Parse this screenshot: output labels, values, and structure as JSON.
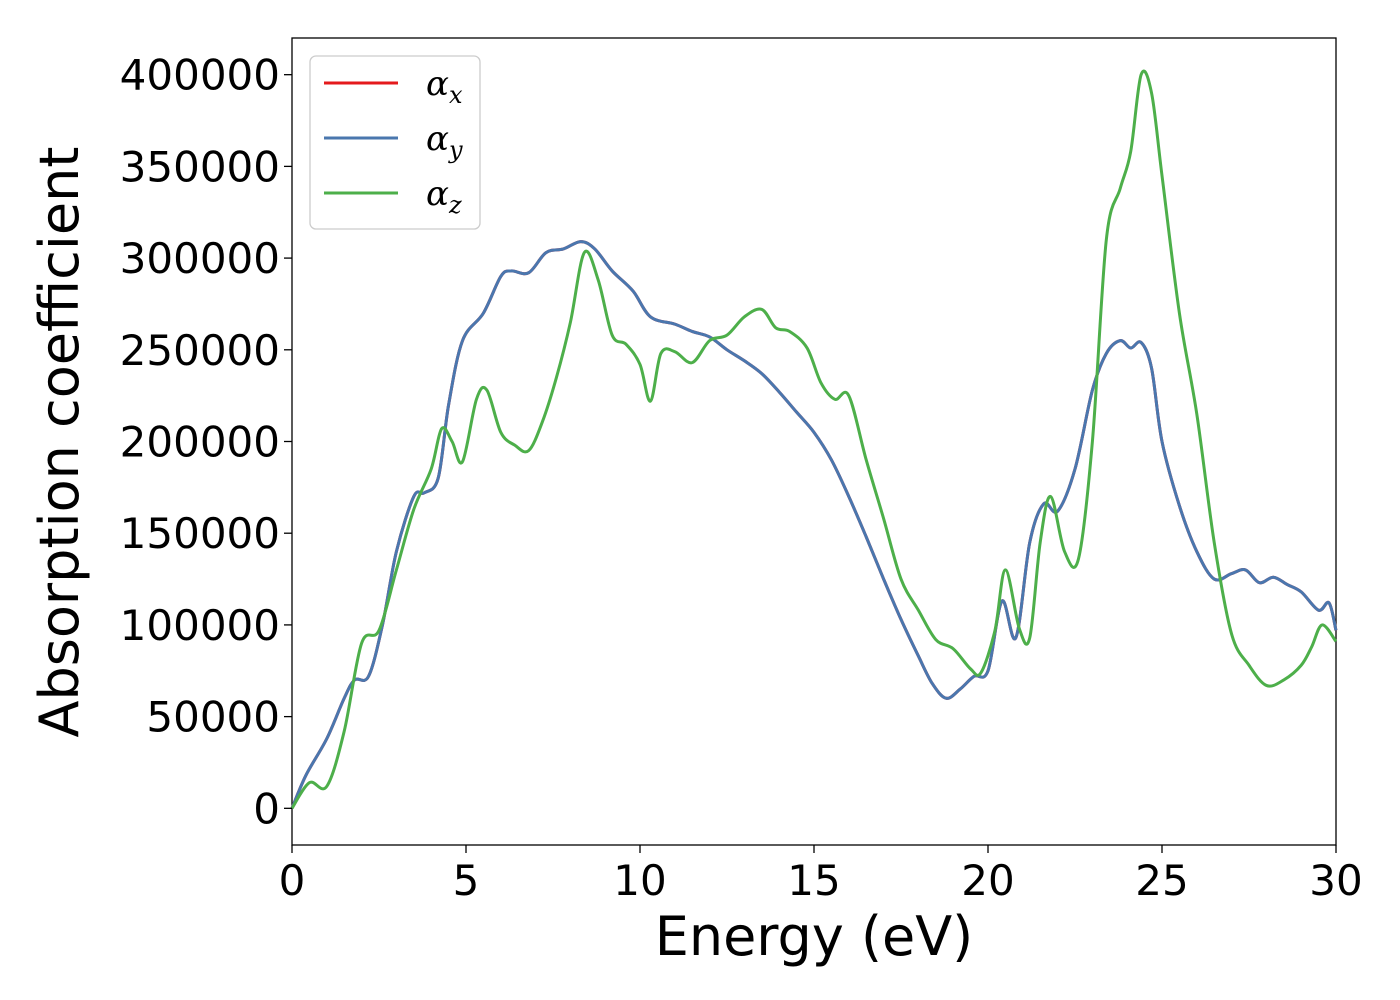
{
  "chart_data": {
    "type": "line",
    "xlabel": "Energy (eV)",
    "ylabel": "Absorption coefficient",
    "xlim": [
      0,
      30
    ],
    "ylim": [
      -20000,
      420000
    ],
    "xticks": [
      "0",
      "5",
      "10",
      "15",
      "20",
      "25",
      "30"
    ],
    "yticks": [
      "0",
      "50000",
      "100000",
      "150000",
      "200000",
      "250000",
      "300000",
      "350000",
      "400000"
    ],
    "grid": false,
    "legend_position": "top-left",
    "series": [
      {
        "name": "α",
        "subscript": "x",
        "color": "#e41a1c",
        "x": [
          0,
          0.4,
          1.0,
          1.5,
          1.8,
          2.2,
          2.6,
          3.0,
          3.5,
          3.8,
          4.2,
          4.5,
          4.9,
          5.5,
          6.0,
          6.3,
          6.8,
          7.3,
          7.8,
          8.3,
          8.7,
          9.2,
          9.8,
          10.3,
          11.0,
          11.5,
          12.0,
          12.5,
          13.0,
          13.5,
          14.0,
          14.5,
          15.0,
          15.5,
          16.0,
          16.5,
          17.0,
          17.5,
          18.0,
          18.4,
          18.8,
          19.2,
          19.6,
          20.0,
          20.4,
          20.8,
          21.2,
          21.6,
          22.0,
          22.5,
          23.0,
          23.4,
          23.8,
          24.1,
          24.4,
          24.7,
          25.0,
          25.5,
          26.0,
          26.5,
          27.0,
          27.4,
          27.8,
          28.2,
          28.6,
          29.0,
          29.5,
          29.8,
          30.0
        ],
        "values": [
          0,
          18000,
          38000,
          60000,
          70000,
          72000,
          100000,
          140000,
          170000,
          172000,
          180000,
          220000,
          255000,
          270000,
          290000,
          293000,
          292000,
          303000,
          305000,
          309000,
          305000,
          293000,
          282000,
          268000,
          264000,
          260000,
          257000,
          250000,
          244000,
          237000,
          227000,
          216000,
          205000,
          190000,
          170000,
          148000,
          125000,
          103000,
          83000,
          68000,
          60000,
          65000,
          72000,
          75000,
          113000,
          93000,
          145000,
          166000,
          162000,
          185000,
          228000,
          248000,
          255000,
          251000,
          254000,
          240000,
          200000,
          165000,
          140000,
          125000,
          128000,
          130000,
          123000,
          126000,
          122000,
          118000,
          108000,
          112000,
          97000
        ]
      },
      {
        "name": "α",
        "subscript": "y",
        "color": "#4a77ae",
        "x": [
          0,
          0.4,
          1.0,
          1.5,
          1.8,
          2.2,
          2.6,
          3.0,
          3.5,
          3.8,
          4.2,
          4.5,
          4.9,
          5.5,
          6.0,
          6.3,
          6.8,
          7.3,
          7.8,
          8.3,
          8.7,
          9.2,
          9.8,
          10.3,
          11.0,
          11.5,
          12.0,
          12.5,
          13.0,
          13.5,
          14.0,
          14.5,
          15.0,
          15.5,
          16.0,
          16.5,
          17.0,
          17.5,
          18.0,
          18.4,
          18.8,
          19.2,
          19.6,
          20.0,
          20.4,
          20.8,
          21.2,
          21.6,
          22.0,
          22.5,
          23.0,
          23.4,
          23.8,
          24.1,
          24.4,
          24.7,
          25.0,
          25.5,
          26.0,
          26.5,
          27.0,
          27.4,
          27.8,
          28.2,
          28.6,
          29.0,
          29.5,
          29.8,
          30.0
        ],
        "values": [
          0,
          18000,
          38000,
          60000,
          70000,
          72000,
          100000,
          140000,
          170000,
          172000,
          180000,
          220000,
          255000,
          270000,
          290000,
          293000,
          292000,
          303000,
          305000,
          309000,
          305000,
          293000,
          282000,
          268000,
          264000,
          260000,
          257000,
          250000,
          244000,
          237000,
          227000,
          216000,
          205000,
          190000,
          170000,
          148000,
          125000,
          103000,
          83000,
          68000,
          60000,
          65000,
          72000,
          75000,
          113000,
          93000,
          145000,
          166000,
          162000,
          185000,
          228000,
          248000,
          255000,
          251000,
          254000,
          240000,
          200000,
          165000,
          140000,
          125000,
          128000,
          130000,
          123000,
          126000,
          122000,
          118000,
          108000,
          112000,
          97000
        ]
      },
      {
        "name": "α",
        "subscript": "z",
        "color": "#4daf4a",
        "x": [
          0,
          0.5,
          1.0,
          1.5,
          2.0,
          2.5,
          3.0,
          3.5,
          4.0,
          4.3,
          4.6,
          4.9,
          5.3,
          5.6,
          6.0,
          6.4,
          6.8,
          7.2,
          7.6,
          8.0,
          8.4,
          8.8,
          9.2,
          9.6,
          10.0,
          10.3,
          10.6,
          11.0,
          11.5,
          12.0,
          12.5,
          13.0,
          13.5,
          13.9,
          14.3,
          14.8,
          15.2,
          15.6,
          16.0,
          16.5,
          17.0,
          17.5,
          18.0,
          18.5,
          19.0,
          19.5,
          19.8,
          20.2,
          20.5,
          20.9,
          21.2,
          21.5,
          21.8,
          22.2,
          22.6,
          23.0,
          23.4,
          23.8,
          24.1,
          24.4,
          24.7,
          25.0,
          25.5,
          26.0,
          26.5,
          27.0,
          27.5,
          28.0,
          28.5,
          29.0,
          29.3,
          29.6,
          30.0
        ],
        "values": [
          0,
          14000,
          12000,
          42000,
          90000,
          97000,
          130000,
          163000,
          185000,
          207000,
          200000,
          189000,
          223000,
          228000,
          205000,
          198000,
          195000,
          211000,
          235000,
          265000,
          303000,
          288000,
          258000,
          253000,
          242000,
          222000,
          248000,
          249000,
          243000,
          255000,
          258000,
          268000,
          272000,
          262000,
          260000,
          251000,
          232000,
          223000,
          225000,
          190000,
          158000,
          125000,
          108000,
          92000,
          87000,
          76000,
          74000,
          97000,
          130000,
          98000,
          93000,
          145000,
          170000,
          140000,
          136000,
          200000,
          310000,
          338000,
          358000,
          400000,
          390000,
          345000,
          270000,
          215000,
          145000,
          95000,
          78000,
          67000,
          70000,
          78000,
          88000,
          100000,
          91000
        ]
      }
    ]
  }
}
